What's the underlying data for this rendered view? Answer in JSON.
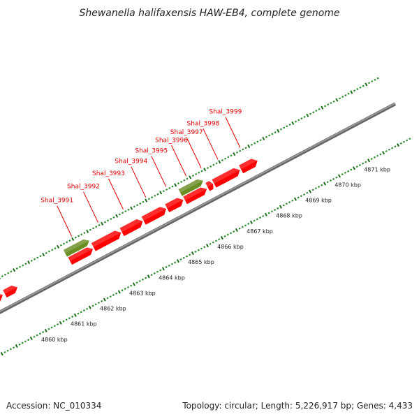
{
  "title": "Shewanella halifaxensis HAW-EB4, complete genome",
  "footer": {
    "accession": "Accession: NC_010334",
    "summary": "Topology: circular; Length: 5,226,917 bp; Genes: 4,433"
  },
  "colors": {
    "gene": "#ff0000",
    "gene_dark": "#cc0000",
    "rna": "#6b8e23",
    "tick": "#2e8b2e",
    "backbone": "#999999",
    "label": "#e00000"
  },
  "axis": {
    "unit": "kbp",
    "ticks": [
      {
        "label": "4860 kbp",
        "kbp": 4860
      },
      {
        "label": "4861 kbp",
        "kbp": 4861
      },
      {
        "label": "4862 kbp",
        "kbp": 4862
      },
      {
        "label": "4863 kbp",
        "kbp": 4863
      },
      {
        "label": "4864 kbp",
        "kbp": 4864
      },
      {
        "label": "4865 kbp",
        "kbp": 4865
      },
      {
        "label": "4866 kbp",
        "kbp": 4866
      },
      {
        "label": "4867 kbp",
        "kbp": 4867
      },
      {
        "label": "4868 kbp",
        "kbp": 4868
      },
      {
        "label": "4869 kbp",
        "kbp": 4869
      },
      {
        "label": "4870 kbp",
        "kbp": 4870
      },
      {
        "label": "4871 kbp",
        "kbp": 4871
      }
    ]
  },
  "genes": [
    {
      "name": "Shal_3991",
      "start": 4861.6,
      "end": 4862.42,
      "strand": "+",
      "type": "rna"
    },
    {
      "name": "Shal_3992",
      "start": 4862.44,
      "end": 4863.38,
      "strand": "+",
      "type": "gene"
    },
    {
      "name": "Shal_3993",
      "start": 4863.41,
      "end": 4864.12,
      "strand": "+",
      "type": "gene"
    },
    {
      "name": "Shal_3994",
      "start": 4864.15,
      "end": 4864.92,
      "strand": "+",
      "type": "gene"
    },
    {
      "name": "Shal_3995",
      "start": 4864.95,
      "end": 4865.5,
      "strand": "+",
      "type": "gene"
    },
    {
      "name": "Shal_3996",
      "start": 4865.52,
      "end": 4866.3,
      "strand": "+",
      "type": "rna"
    },
    {
      "name": "Shal_3997",
      "start": 4866.33,
      "end": 4866.52,
      "strand": "+",
      "type": "gene"
    },
    {
      "name": "Shal_3998",
      "start": 4866.55,
      "end": 4867.43,
      "strand": "+",
      "type": "gene"
    },
    {
      "name": "Shal_3999",
      "start": 4867.47,
      "end": 4868.03,
      "strand": "+",
      "type": "gene"
    }
  ]
}
